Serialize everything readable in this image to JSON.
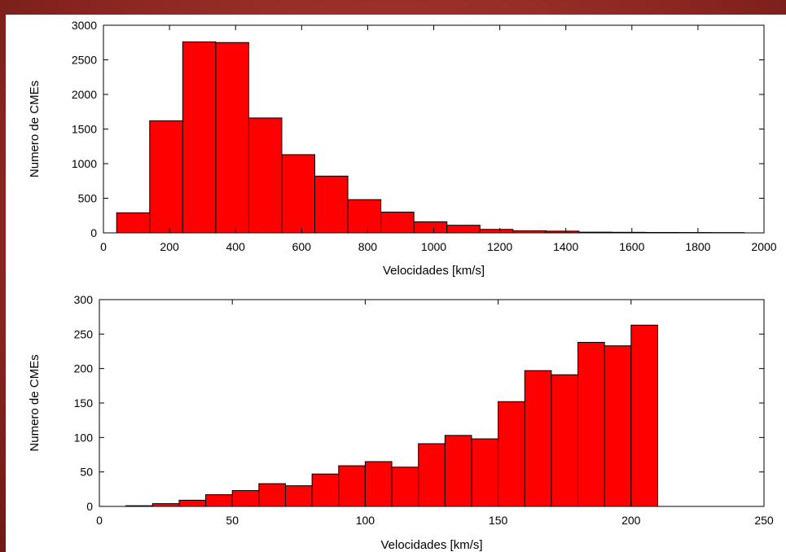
{
  "colors": {
    "bar_fill": "#ff0000",
    "bar_stroke": "#000000",
    "background": "#9e2f28"
  },
  "chart_data": [
    {
      "type": "bar",
      "title": "",
      "xlabel": "Velocidades [km/s]",
      "ylabel": "Numero de CMEs",
      "xlim": [
        0,
        2000
      ],
      "ylim": [
        0,
        3000
      ],
      "xticks": [
        0,
        200,
        400,
        600,
        800,
        1000,
        1200,
        1400,
        1600,
        1800,
        2000
      ],
      "yticks": [
        0,
        500,
        1000,
        1500,
        2000,
        2500,
        3000
      ],
      "bin_width": 100,
      "bin_centers": [
        90,
        190,
        290,
        390,
        490,
        590,
        690,
        790,
        890,
        990,
        1090,
        1190,
        1290,
        1390,
        1490,
        1590,
        1690,
        1790,
        1890
      ],
      "values": [
        290,
        1620,
        2760,
        2750,
        1660,
        1130,
        820,
        480,
        300,
        160,
        110,
        50,
        30,
        25,
        10,
        8,
        6,
        5,
        4
      ],
      "grid": false
    },
    {
      "type": "bar",
      "title": "",
      "xlabel": "Velocidades [km/s]",
      "ylabel": "Numero de CMEs",
      "xlim": [
        0,
        250
      ],
      "ylim": [
        0,
        300
      ],
      "xticks": [
        0,
        50,
        100,
        150,
        200,
        250
      ],
      "yticks": [
        0,
        50,
        100,
        150,
        200,
        250,
        300
      ],
      "bin_width": 10,
      "bin_centers": [
        15,
        25,
        35,
        45,
        55,
        65,
        75,
        85,
        95,
        105,
        115,
        125,
        135,
        145,
        155,
        165,
        175,
        185,
        195,
        205
      ],
      "values": [
        1,
        4,
        9,
        17,
        23,
        33,
        30,
        47,
        59,
        65,
        57,
        91,
        103,
        98,
        152,
        197,
        191,
        238,
        233,
        263
      ],
      "grid": false
    }
  ]
}
